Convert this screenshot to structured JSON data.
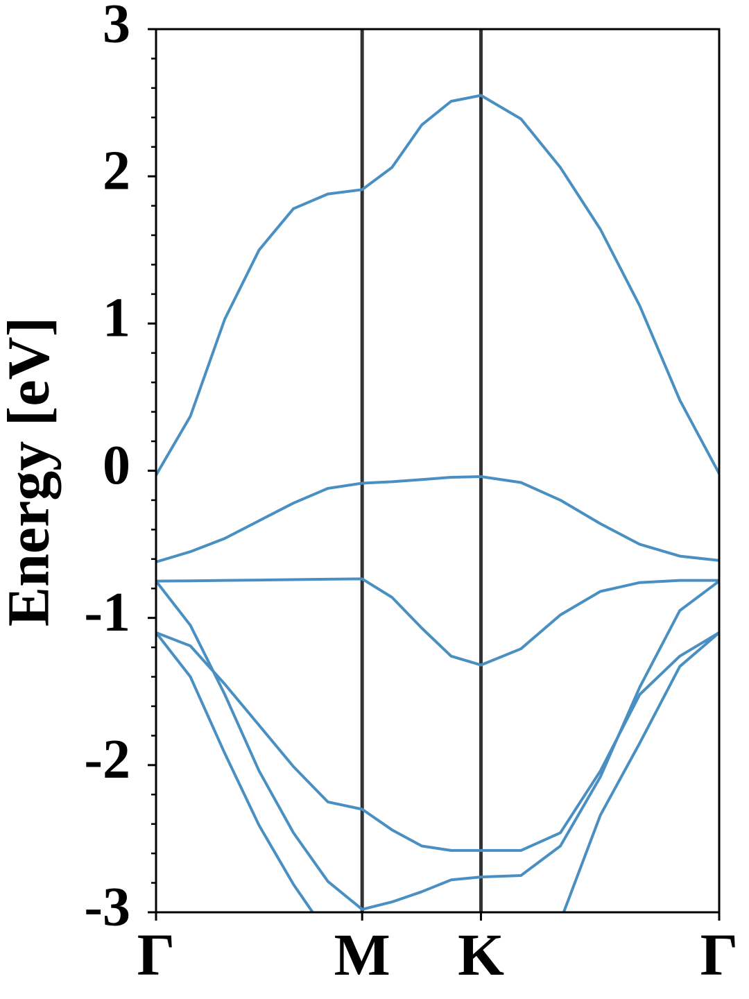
{
  "chart_data": {
    "type": "line",
    "ylabel": "Energy [eV]",
    "x": [
      0,
      0.061,
      0.122,
      0.183,
      0.244,
      0.305,
      0.366,
      0.419,
      0.472,
      0.524,
      0.577,
      0.648,
      0.718,
      0.789,
      0.859,
      0.93,
      1.0
    ],
    "xlim": [
      0,
      1
    ],
    "xticks": [
      {
        "value": 0,
        "label": "Γ"
      },
      {
        "value": 0.366,
        "label": "M"
      },
      {
        "value": 0.577,
        "label": "K"
      },
      {
        "value": 1,
        "label": "Γ"
      }
    ],
    "ylim": [
      -3,
      3
    ],
    "yticks": [
      -3,
      -2,
      -1,
      0,
      1,
      2,
      3
    ],
    "color": "#4a8fc2",
    "series": [
      {
        "values": [
          -0.03,
          0.37,
          1.03,
          1.5,
          1.78,
          1.88,
          1.91,
          2.06,
          2.35,
          2.51,
          2.55,
          2.39,
          2.06,
          1.64,
          1.12,
          0.48,
          -0.02
        ]
      },
      {
        "values": [
          -0.62,
          -0.55,
          -0.46,
          -0.34,
          -0.22,
          -0.12,
          -0.085,
          -0.075,
          -0.06,
          -0.045,
          -0.04,
          -0.08,
          -0.2,
          -0.36,
          -0.5,
          -0.58,
          -0.61
        ]
      },
      {
        "values": [
          -0.75,
          -0.748,
          -0.745,
          -0.743,
          -0.74,
          -0.737,
          -0.735,
          -0.86,
          -1.07,
          -1.26,
          -1.32,
          -1.21,
          -0.98,
          -0.82,
          -0.76,
          -0.745,
          -0.745
        ]
      },
      {
        "values": [
          -0.75,
          -1.05,
          -1.52,
          -2.04,
          -2.46,
          -2.79,
          -2.98,
          -2.93,
          -2.86,
          -2.78,
          -2.76,
          -2.75,
          -2.55,
          -2.08,
          -1.47,
          -0.95,
          -0.75
        ]
      },
      {
        "values": [
          -1.1,
          -1.19,
          -1.45,
          -1.73,
          -2.01,
          -2.25,
          -2.3,
          -2.44,
          -2.55,
          -2.58,
          -2.58,
          -2.58,
          -2.46,
          -2.04,
          -1.52,
          -1.26,
          -1.1
        ]
      },
      {
        "values": [
          -1.1,
          -1.4,
          -1.92,
          -2.41,
          -2.81,
          -3.15,
          null,
          null,
          null,
          null,
          null,
          null,
          -3.06,
          -2.34,
          -1.85,
          -1.33,
          -1.1
        ]
      }
    ]
  }
}
